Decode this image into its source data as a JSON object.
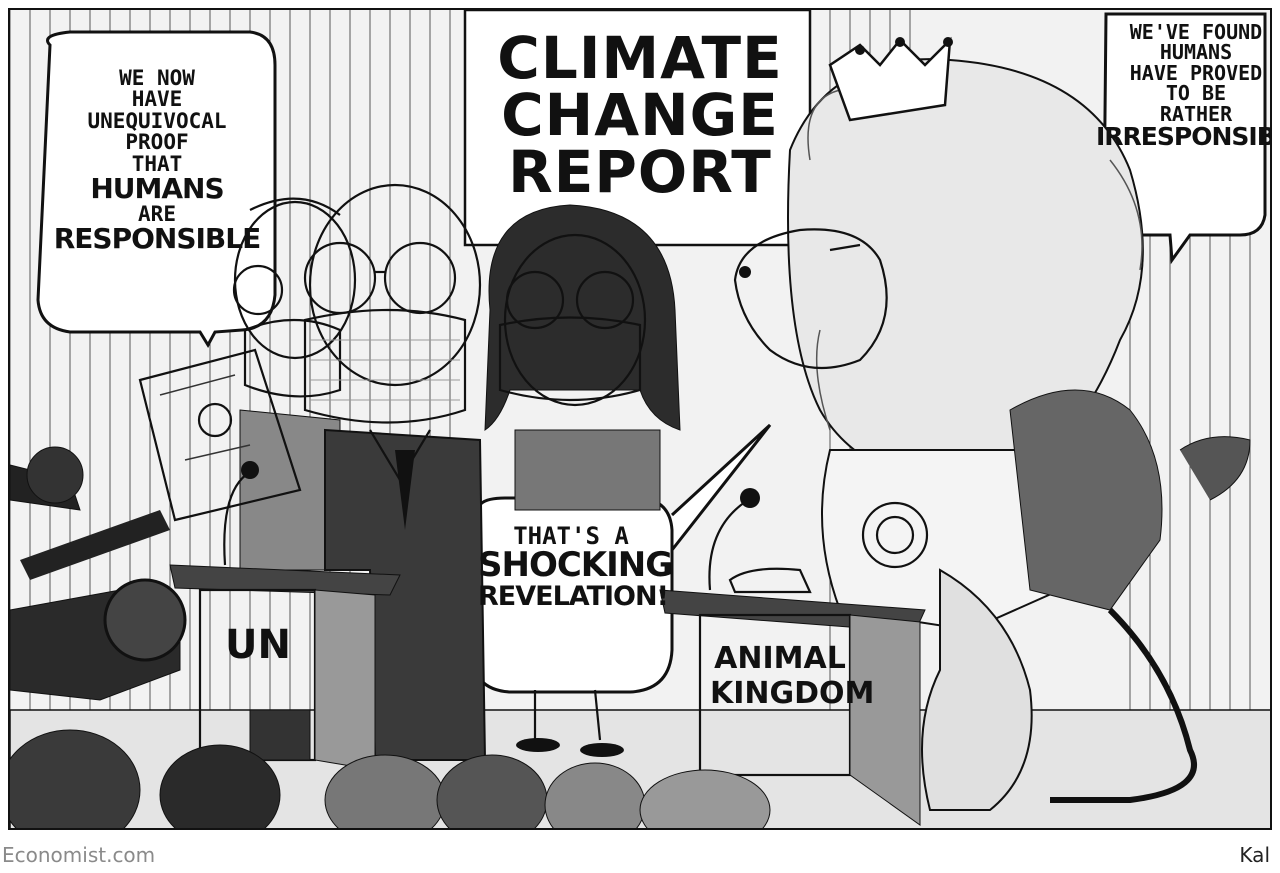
{
  "cartoon": {
    "title": [
      "CLIMATE",
      "CHANGE",
      "REPORT"
    ],
    "bubble_un": [
      "WE NOW",
      "HAVE",
      "UNEQUIVOCAL",
      "PROOF",
      "THAT",
      "HUMANS",
      "ARE",
      "RESPONSIBLE"
    ],
    "bubble_lion": [
      "WE'VE FOUND",
      "HUMANS",
      "HAVE PROVED",
      "TO BE",
      "RATHER",
      "IRRESPONSIBLE"
    ],
    "bubble_woman": [
      "THAT'S A",
      "SHOCKING",
      "REVELATION!"
    ],
    "podium_un": "UN",
    "podium_animal": [
      "ANIMAL",
      "KINGDOM"
    ]
  },
  "footer": {
    "source": "Economist.com",
    "artist": "Kal"
  }
}
